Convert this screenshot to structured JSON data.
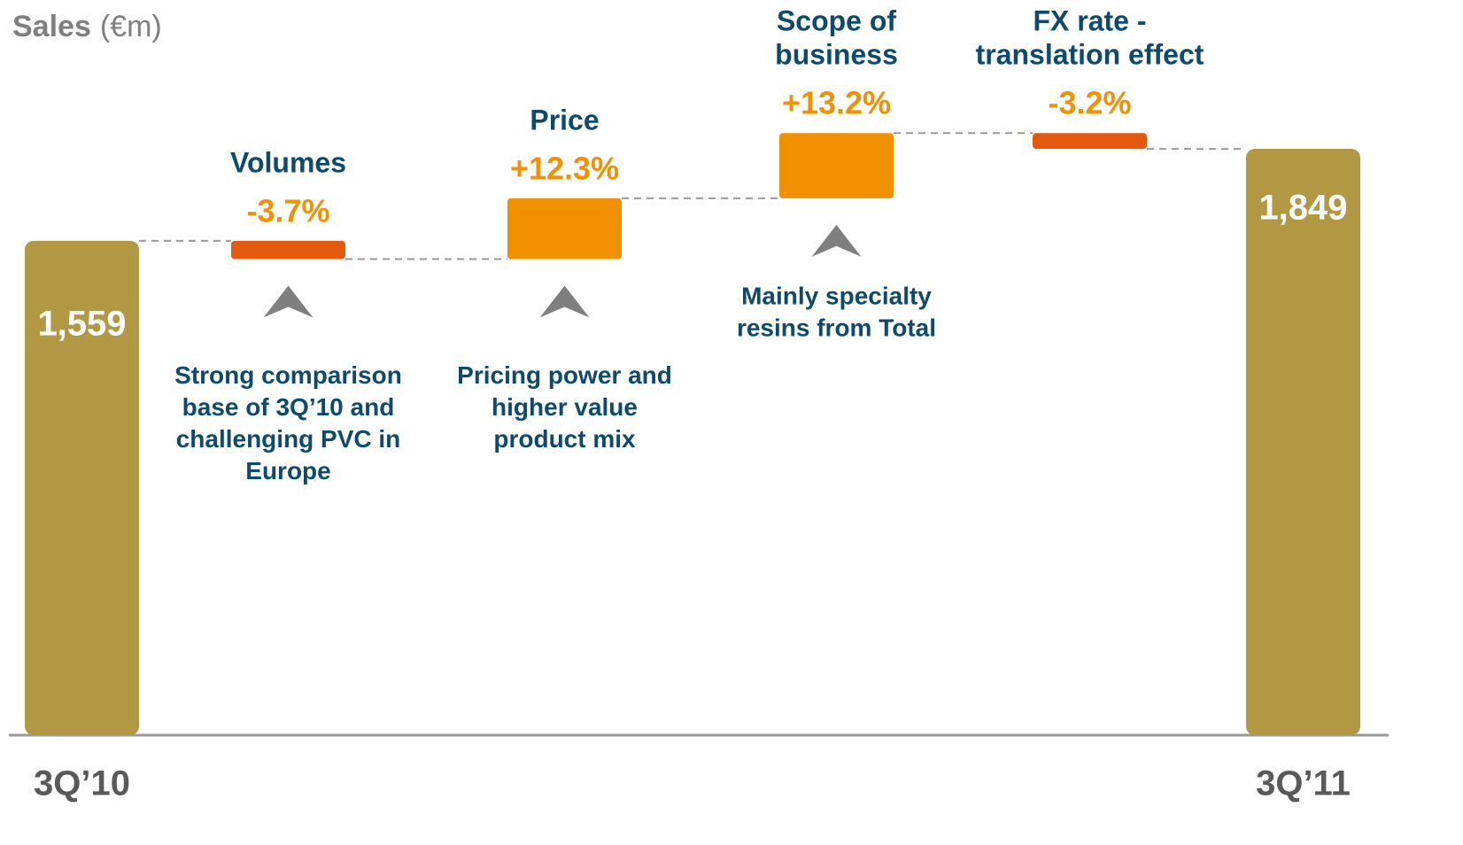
{
  "chart_data": {
    "type": "waterfall",
    "title": "Sales",
    "unit": "(€m)",
    "start": {
      "category": "3Q’10",
      "value": 1559,
      "value_label": "1,559"
    },
    "end": {
      "category": "3Q’11",
      "value": 1849,
      "value_label": "1,849"
    },
    "steps": [
      {
        "name": [
          "Volumes"
        ],
        "value": -3.7,
        "value_label": "-3.7%",
        "note": [
          "Strong comparison",
          "base of 3Q’10 and",
          "challenging PVC in",
          "Europe"
        ]
      },
      {
        "name": [
          "Price"
        ],
        "value": 12.3,
        "value_label": "+12.3%",
        "note": [
          "Pricing power and",
          "higher value",
          "product mix"
        ]
      },
      {
        "name": [
          "Scope of",
          "business"
        ],
        "value": 13.2,
        "value_label": "+13.2%",
        "note": [
          "Mainly specialty",
          "resins from Total"
        ]
      },
      {
        "name": [
          "FX rate -",
          "translation effect"
        ],
        "value": -3.2,
        "value_label": "-3.2%"
      }
    ],
    "colors": {
      "total": "#b39844",
      "increase": "#f29100",
      "decrease": "#e35a0f"
    }
  }
}
